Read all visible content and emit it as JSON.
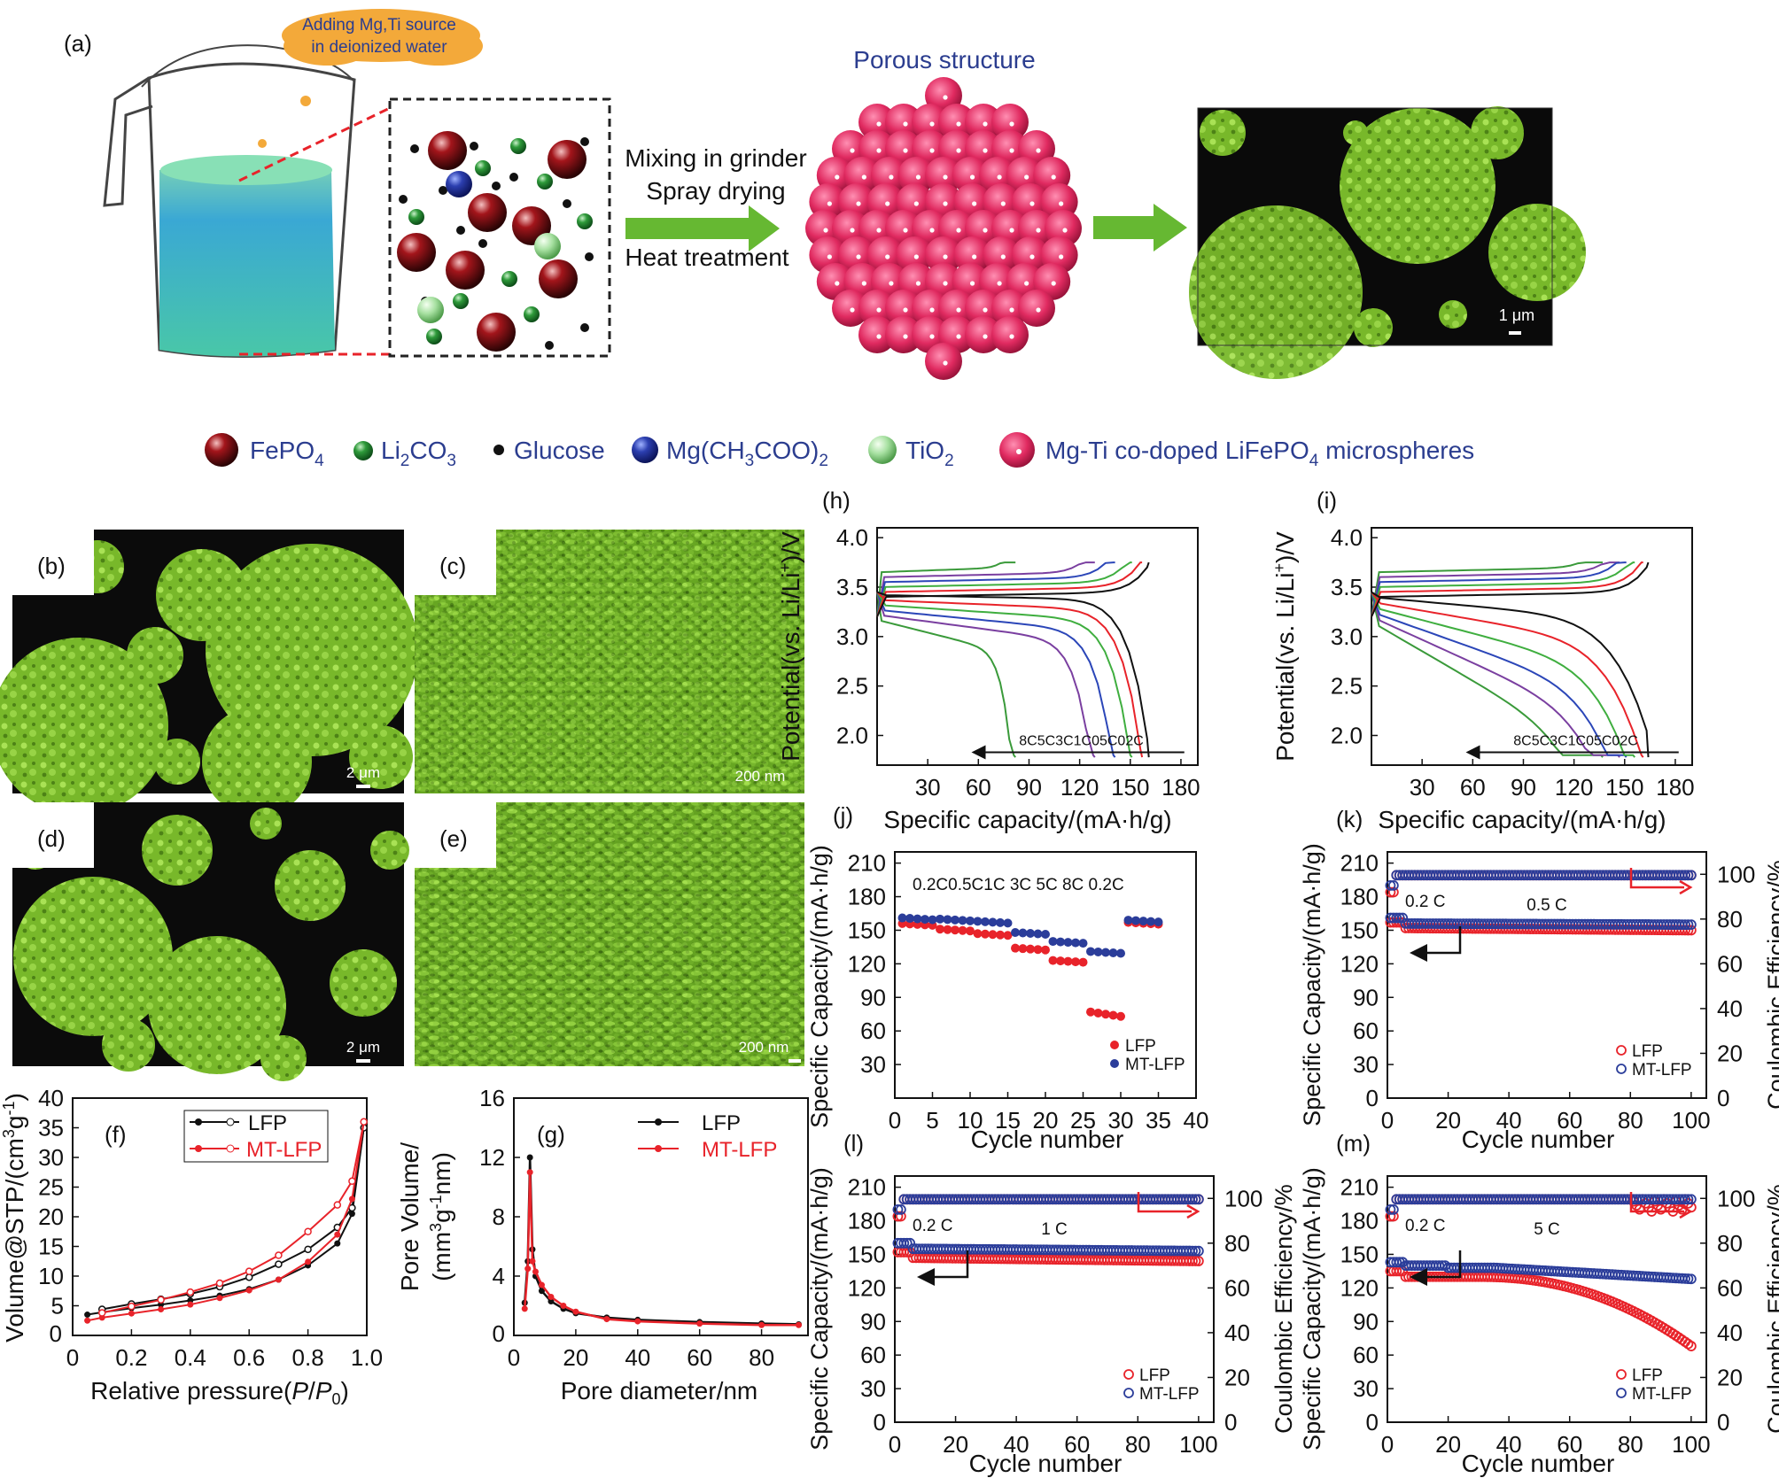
{
  "panel_a": {
    "label": "(a)",
    "bubble_text": [
      "Adding Mg,Ti source",
      "in deionized water"
    ],
    "steps": [
      "Mixing in grinder",
      "Spray drying",
      "Heat treatment"
    ],
    "porous_title": "Porous structure",
    "sem_scale": "1 μm",
    "legend": [
      {
        "name": "FePO4",
        "sub": "4",
        "base": "FePO",
        "tail": ""
      },
      {
        "name": "Li2CO3",
        "base": "Li",
        "sub": "2",
        "mid": "CO",
        "sub2": "3"
      },
      {
        "name": "Glucose"
      },
      {
        "name": "Mg(CH3COO)2",
        "base": "Mg(CH",
        "sub": "3",
        "mid": "COO)",
        "sub2": "2"
      },
      {
        "name": "TiO2",
        "base": "TiO",
        "sub": "2"
      },
      {
        "name": "Mg-Ti co-doped LiFePO4 microspheres",
        "base": "Mg-Ti co-doped LiFePO",
        "sub": "4",
        "tail": " microspheres"
      }
    ],
    "colors": {
      "bubble": "#f3a93a",
      "bubble_text": "#2b3d8f",
      "arrow": "#66b832",
      "sphere": "#e0285e",
      "sem": "#7cc42a",
      "title": "#2b3d8f"
    }
  },
  "sem_panels": [
    {
      "label": "(b)",
      "scale": "2 μm"
    },
    {
      "label": "(c)",
      "scale": "200 nm"
    },
    {
      "label": "(d)",
      "scale": "2 μm"
    },
    {
      "label": "(e)",
      "scale": "200 nm"
    }
  ],
  "chart_data": [
    {
      "id": "f",
      "label": "(f)",
      "type": "line",
      "xlabel": "Relative pressure(P/P0)",
      "ylabel": "Volume@STP/(cm3g-1)",
      "xticks": [
        "0",
        "0.2",
        "0.4",
        "0.6",
        "0.8",
        "1.0"
      ],
      "yticks": [
        "5",
        "10",
        "15",
        "20",
        "25",
        "30",
        "35",
        "40"
      ],
      "xlim": [
        0,
        1.0
      ],
      "ylim": [
        0,
        40
      ],
      "series": [
        {
          "name": "LFP",
          "color": "#111111",
          "adsorption": [
            [
              0.05,
              3.5
            ],
            [
              0.1,
              3.9
            ],
            [
              0.2,
              4.6
            ],
            [
              0.3,
              5.2
            ],
            [
              0.4,
              5.9
            ],
            [
              0.5,
              6.7
            ],
            [
              0.6,
              7.8
            ],
            [
              0.7,
              9.4
            ],
            [
              0.8,
              11.8
            ],
            [
              0.9,
              15.5
            ],
            [
              0.95,
              20.5
            ],
            [
              0.99,
              35.0
            ]
          ],
          "desorption": [
            [
              0.99,
              35.0
            ],
            [
              0.95,
              21.5
            ],
            [
              0.9,
              18.2
            ],
            [
              0.8,
              14.5
            ],
            [
              0.7,
              12.0
            ],
            [
              0.6,
              9.8
            ],
            [
              0.5,
              8.2
            ],
            [
              0.4,
              7.0
            ],
            [
              0.3,
              6.1
            ],
            [
              0.2,
              5.3
            ],
            [
              0.1,
              4.4
            ]
          ]
        },
        {
          "name": "MT-LFP",
          "color": "#e8232a",
          "adsorption": [
            [
              0.05,
              2.5
            ],
            [
              0.1,
              3.0
            ],
            [
              0.2,
              3.7
            ],
            [
              0.3,
              4.4
            ],
            [
              0.4,
              5.2
            ],
            [
              0.5,
              6.3
            ],
            [
              0.6,
              7.6
            ],
            [
              0.7,
              9.4
            ],
            [
              0.8,
              12.4
            ],
            [
              0.9,
              17.0
            ],
            [
              0.95,
              23.0
            ],
            [
              0.99,
              36.0
            ]
          ],
          "desorption": [
            [
              0.99,
              36.0
            ],
            [
              0.95,
              26.0
            ],
            [
              0.9,
              22.0
            ],
            [
              0.8,
              17.5
            ],
            [
              0.7,
              13.5
            ],
            [
              0.6,
              10.8
            ],
            [
              0.5,
              8.8
            ],
            [
              0.4,
              7.3
            ],
            [
              0.3,
              6.0
            ],
            [
              0.2,
              4.9
            ],
            [
              0.1,
              3.8
            ]
          ]
        }
      ]
    },
    {
      "id": "g",
      "label": "(g)",
      "type": "line",
      "xlabel": "Pore diameter/nm",
      "ylabel": "Pore Volume/ (mm3g-1nm)",
      "xticks": [
        "0",
        "20",
        "40",
        "60",
        "80"
      ],
      "yticks": [
        "4",
        "8",
        "12",
        "16"
      ],
      "xlim": [
        0,
        95
      ],
      "ylim": [
        0,
        16
      ],
      "series": [
        {
          "name": "LFP",
          "color": "#111111",
          "points": [
            [
              3.5,
              2.2
            ],
            [
              4.5,
              5.0
            ],
            [
              5.2,
              12.0
            ],
            [
              6,
              5.8
            ],
            [
              7,
              4.0
            ],
            [
              9,
              3.0
            ],
            [
              12,
              2.3
            ],
            [
              16,
              1.8
            ],
            [
              20,
              1.5
            ],
            [
              30,
              1.2
            ],
            [
              40,
              1.05
            ],
            [
              60,
              0.9
            ],
            [
              80,
              0.8
            ],
            [
              92,
              0.75
            ]
          ]
        },
        {
          "name": "MT-LFP",
          "color": "#e8232a",
          "points": [
            [
              3.5,
              1.8
            ],
            [
              4.5,
              4.5
            ],
            [
              5.2,
              11.0
            ],
            [
              6,
              5.0
            ],
            [
              7,
              4.3
            ],
            [
              9,
              3.4
            ],
            [
              12,
              2.6
            ],
            [
              16,
              2.0
            ],
            [
              20,
              1.6
            ],
            [
              30,
              1.1
            ],
            [
              40,
              0.95
            ],
            [
              60,
              0.8
            ],
            [
              80,
              0.7
            ],
            [
              92,
              0.7
            ]
          ]
        }
      ]
    },
    {
      "id": "h",
      "label": "(h)",
      "type": "line",
      "xlabel": "Specific capacity/(mA·h/g)",
      "ylabel": "Potential(vs. Li/Li+)/V",
      "xticks": [
        "30",
        "60",
        "90",
        "120",
        "150",
        "180"
      ],
      "yticks": [
        "2.0",
        "2.5",
        "3.0",
        "3.5",
        "4.0"
      ],
      "xlim": [
        0,
        190
      ],
      "ylim": [
        1.7,
        4.1
      ],
      "rate_labels": [
        "8C",
        "5C",
        "3C",
        "1C",
        "0.5C",
        "0.2C"
      ],
      "rate_colors": [
        "#3a9a3a",
        "#7a3fa0",
        "#2b46b8",
        "#3fae3f",
        "#e8232a",
        "#111111"
      ],
      "rate_text": "8C5C3C1C05C02C",
      "capacities": [
        81,
        128,
        140,
        150,
        156,
        160
      ]
    },
    {
      "id": "i",
      "label": "(i)",
      "type": "line",
      "xlabel": "Specific capacity/(mA·h/g)",
      "ylabel": "Potential(vs. Li/Li+)/V",
      "xticks": [
        "30",
        "60",
        "90",
        "120",
        "150",
        "180"
      ],
      "yticks": [
        "2.0",
        "2.5",
        "3.0",
        "3.5",
        "4.0"
      ],
      "xlim": [
        0,
        190
      ],
      "ylim": [
        1.7,
        4.1
      ],
      "rate_text": "8C5C3C1C05C02C",
      "capacities": [
        136,
        146,
        150,
        155,
        160,
        163
      ]
    },
    {
      "id": "j",
      "label": "(j)",
      "type": "scatter",
      "xlabel": "Cycle number",
      "ylabel": "Specific Capacity/(mA·h/g)",
      "xticks": [
        "0",
        "5",
        "10",
        "15",
        "20",
        "25",
        "30",
        "35",
        "40"
      ],
      "yticks": [
        "30",
        "60",
        "90",
        "120",
        "150",
        "180",
        "210"
      ],
      "xlim": [
        0,
        40
      ],
      "ylim": [
        0,
        220
      ],
      "rate_text": "0.2C0.5C1C 3C 5C 8C 0.2C",
      "series": [
        {
          "name": "LFP",
          "color": "#e8232a",
          "blocks": [
            [
              1,
              5,
              156
            ],
            [
              6,
              10,
              151
            ],
            [
              11,
              15,
              147
            ],
            [
              16,
              20,
              134
            ],
            [
              21,
              25,
              123
            ],
            [
              26,
              30,
              77
            ],
            [
              31,
              35,
              157
            ]
          ]
        },
        {
          "name": "MT-LFP",
          "color": "#2b3d9a",
          "blocks": [
            [
              1,
              5,
              161
            ],
            [
              6,
              10,
              160
            ],
            [
              11,
              15,
              158
            ],
            [
              16,
              20,
              148
            ],
            [
              21,
              25,
              140
            ],
            [
              26,
              30,
              131
            ],
            [
              31,
              35,
              159
            ]
          ]
        }
      ]
    },
    {
      "id": "k",
      "label": "(k)",
      "type": "scatter",
      "xlabel": "Cycle number",
      "ylabel": "Specific Capacity/(mA·h/g)",
      "y2label": "Coulombic Efficiency/%",
      "xticks": [
        "0",
        "20",
        "40",
        "60",
        "80",
        "100"
      ],
      "yticks": [
        "30",
        "60",
        "90",
        "120",
        "150",
        "180",
        "210"
      ],
      "y2ticks": [
        "0",
        "20",
        "40",
        "60",
        "80",
        "100"
      ],
      "annotations": [
        "0.2 C",
        "0.5 C"
      ],
      "series": [
        {
          "name": "LFP",
          "color": "#e8232a",
          "capacity_start": 152,
          "capacity_end": 150
        },
        {
          "name": "MT-LFP",
          "color": "#2b3d9a",
          "capacity_start": 156,
          "capacity_end": 155
        }
      ]
    },
    {
      "id": "l",
      "label": "(l)",
      "type": "scatter",
      "xlabel": "Cycle number",
      "ylabel": "Specific Capacity/(mA·h/g)",
      "y2label": "Coulombic Efficiency/%",
      "xticks": [
        "0",
        "20",
        "40",
        "60",
        "80",
        "100"
      ],
      "yticks": [
        "30",
        "60",
        "90",
        "120",
        "150",
        "180",
        "210"
      ],
      "y2ticks": [
        "0",
        "20",
        "40",
        "60",
        "80",
        "100"
      ],
      "annotations": [
        "0.2 C",
        "1 C"
      ],
      "series": [
        {
          "name": "LFP",
          "color": "#e8232a",
          "capacity_start": 147,
          "capacity_end": 144
        },
        {
          "name": "MT-LFP",
          "color": "#2b3d9a",
          "capacity_start": 155,
          "capacity_end": 153
        }
      ]
    },
    {
      "id": "m",
      "label": "(m)",
      "type": "scatter",
      "xlabel": "Cycle number",
      "ylabel": "Specific Capacity/(mA·h/g)",
      "y2label": "Coulombic Efficiency/%",
      "xticks": [
        "0",
        "20",
        "40",
        "60",
        "80",
        "100"
      ],
      "yticks": [
        "30",
        "60",
        "90",
        "120",
        "150",
        "180",
        "210"
      ],
      "y2ticks": [
        "0",
        "20",
        "40",
        "60",
        "80",
        "100"
      ],
      "annotations": [
        "0.2 C",
        "5 C"
      ],
      "series": [
        {
          "name": "LFP",
          "color": "#e8232a",
          "capacity_start": 130,
          "capacity_end": 68
        },
        {
          "name": "MT-LFP",
          "color": "#2b3d9a",
          "capacity_start": 138,
          "capacity_end": 128
        }
      ]
    }
  ],
  "legend_names": {
    "lfp": "LFP",
    "mt": "MT-LFP"
  }
}
